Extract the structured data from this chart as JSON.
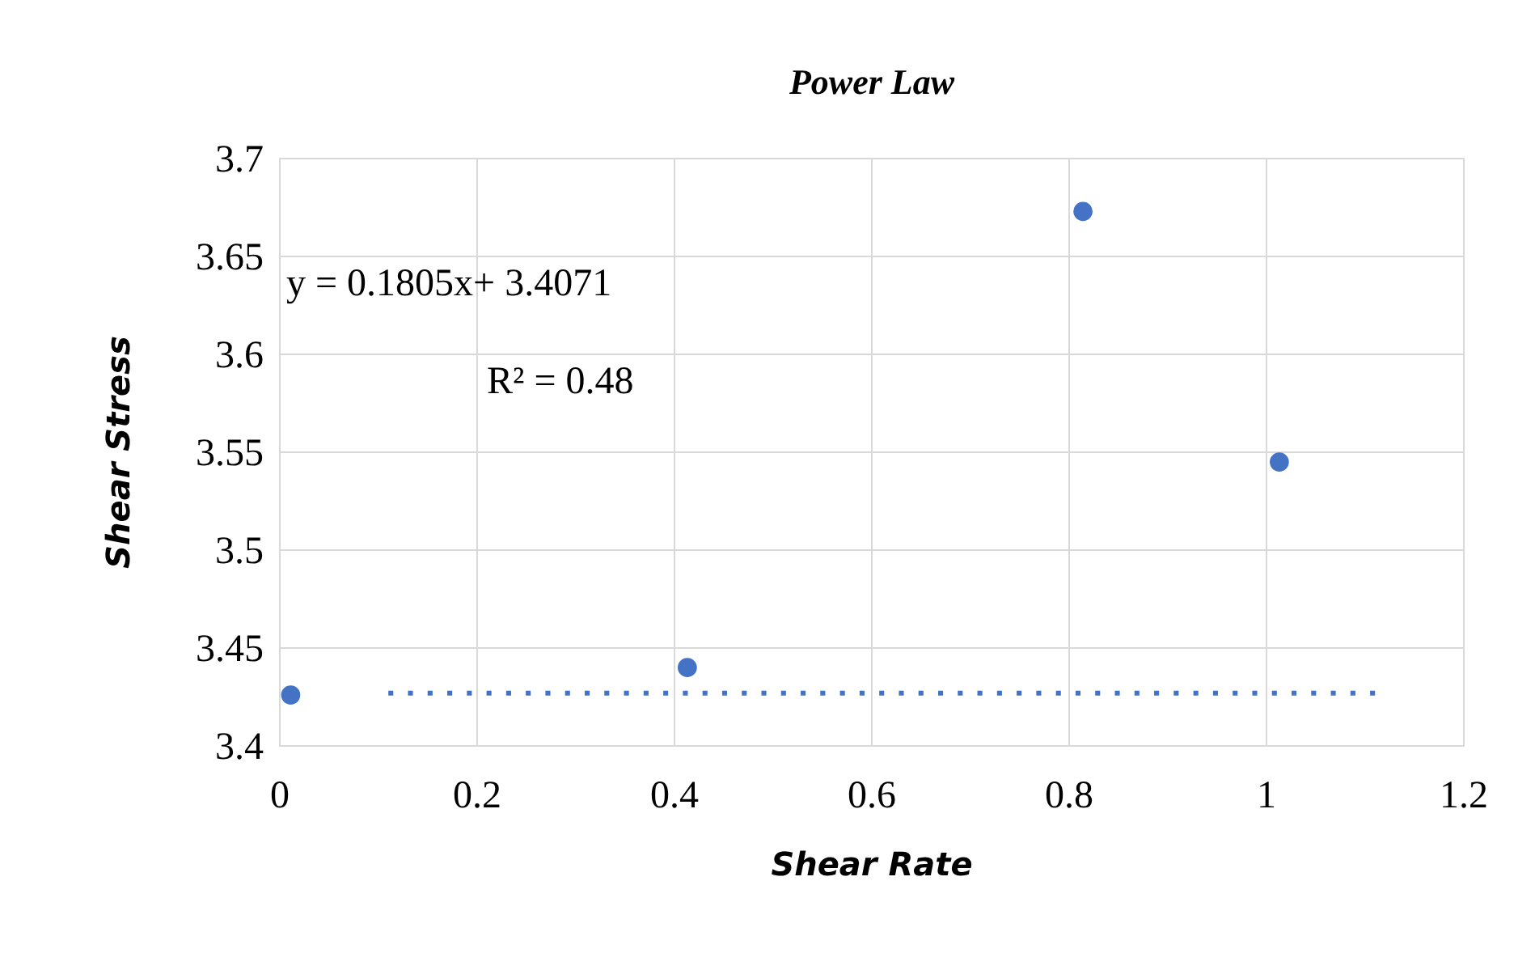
{
  "chart_data": {
    "type": "scatter",
    "title": "Power Law",
    "xlabel": "Shear Rate",
    "ylabel": "Shear Stress",
    "xlim": [
      0,
      1.2
    ],
    "xticks": [
      0,
      0.2,
      0.4,
      0.6,
      0.8,
      1,
      1.2
    ],
    "ylim": [
      3.4,
      3.7
    ],
    "yticks": [
      3.4,
      3.45,
      3.5,
      3.55,
      3.6,
      3.65,
      3.7
    ],
    "grid": true,
    "x": [
      0.011,
      0.413,
      0.814,
      1.013
    ],
    "series": [
      {
        "color": "#4472c4",
        "marker": "circle",
        "values": [
          3.426,
          3.44,
          3.673,
          3.545
        ]
      },
      {
        "type": "line",
        "x": [
          0.11,
          1.11
        ],
        "values": [
          3.427,
          3.427
        ],
        "color": "#4472c4",
        "line_style": "dotted"
      }
    ],
    "annotations": [
      "y = 0.1805x+ 3.4071",
      "R² = 0.48"
    ]
  }
}
